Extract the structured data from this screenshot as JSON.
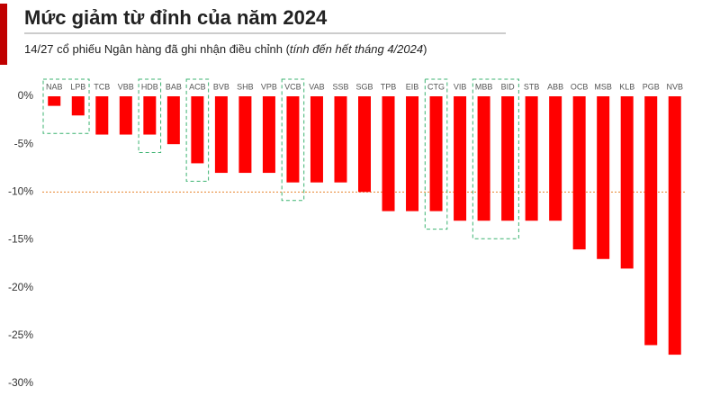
{
  "chart_data": {
    "type": "bar",
    "title": "Mức giảm từ đỉnh của năm 2024",
    "subtitle": {
      "text": "14/27 cổ phiếu Ngân hàng đã ghi nhận điều chỉnh (",
      "italic": "tính đến hết tháng 4/2024",
      "end": ")"
    },
    "categories": [
      "NAB",
      "LPB",
      "TCB",
      "VBB",
      "HDB",
      "BAB",
      "ACB",
      "BVB",
      "SHB",
      "VPB",
      "VCB",
      "VAB",
      "SSB",
      "SGB",
      "TPB",
      "EIB",
      "CTG",
      "VIB",
      "MBB",
      "BID",
      "STB",
      "ABB",
      "OCB",
      "MSB",
      "KLB",
      "PGB",
      "NVB"
    ],
    "values": [
      -1,
      -2,
      -4,
      -4,
      -4,
      -5,
      -7,
      -8,
      -8,
      -8,
      -9,
      -9,
      -9,
      -10,
      -12,
      -12,
      -12,
      -13,
      -13,
      -13,
      -13,
      -13,
      -16,
      -17,
      -18,
      -26,
      -27
    ],
    "highlight": [
      true,
      true,
      false,
      false,
      true,
      false,
      true,
      false,
      false,
      false,
      true,
      false,
      false,
      false,
      false,
      false,
      true,
      false,
      true,
      true,
      false,
      false,
      false,
      false,
      false,
      false,
      false
    ],
    "highlight_color": "#3cb371",
    "color": "#ff0000",
    "ylim": [
      -30,
      0
    ],
    "yticks": [
      {
        "value": 0,
        "label": "0%"
      },
      {
        "value": -5,
        "label": "-5%"
      },
      {
        "value": -10,
        "label": "-10%"
      },
      {
        "value": -15,
        "label": "-15%"
      },
      {
        "value": -20,
        "label": "-20%"
      },
      {
        "value": -25,
        "label": "-25%"
      },
      {
        "value": -30,
        "label": "-30%"
      }
    ],
    "reference_line": {
      "value": -10,
      "color": "#e8822a"
    }
  }
}
